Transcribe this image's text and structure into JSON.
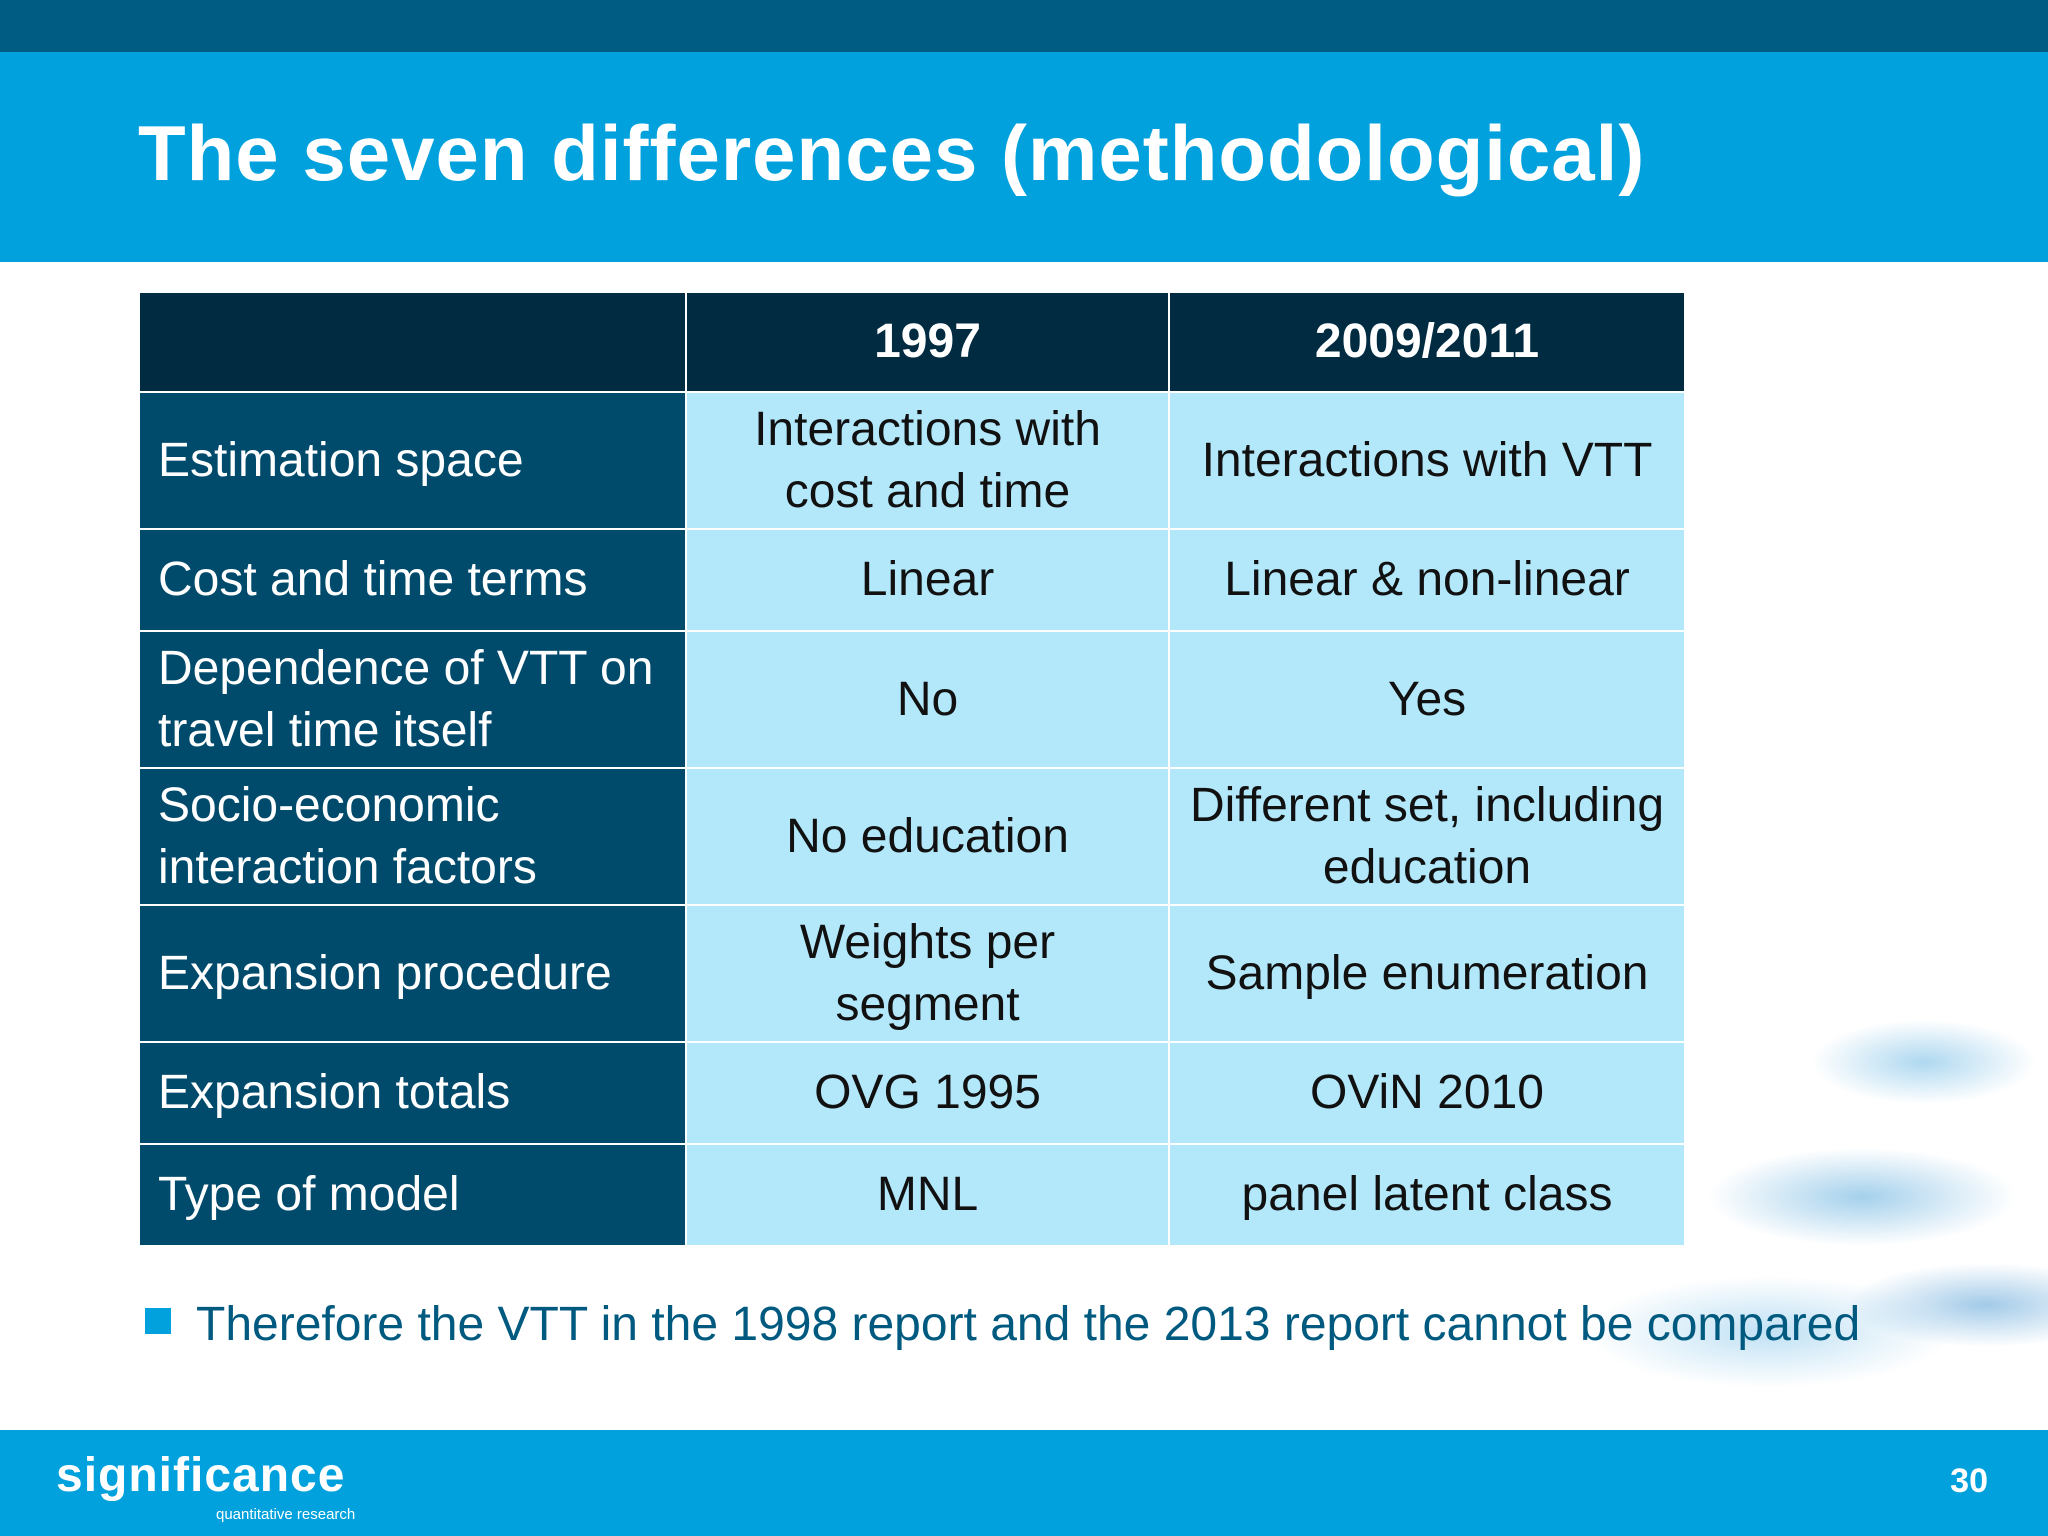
{
  "title": "The seven differences (methodological)",
  "table": {
    "headers": [
      "",
      "1997",
      "2009/2011"
    ],
    "rows": [
      {
        "label": "Estimation space",
        "v1997": "Interactions with cost and time",
        "v2009": "Interactions with VTT"
      },
      {
        "label": "Cost and time terms",
        "v1997": "Linear",
        "v2009": "Linear & non-linear"
      },
      {
        "label": "Dependence of VTT on travel time itself",
        "v1997": "No",
        "v2009": "Yes"
      },
      {
        "label": "Socio-economic interaction factors",
        "v1997": "No education",
        "v2009": "Different set, including education"
      },
      {
        "label": "Expansion procedure",
        "v1997": "Weights per segment",
        "v2009": "Sample enumeration"
      },
      {
        "label": "Expansion totals",
        "v1997": "OVG 1995",
        "v2009": "OViN 2010"
      },
      {
        "label": "Type of model",
        "v1997": "MNL",
        "v2009": "panel latent class"
      }
    ]
  },
  "bullet": "Therefore the VTT in the 1998 report and the 2013 report cannot be compared",
  "footer": {
    "logo": "significance",
    "logo_sub": "quantitative research",
    "page_number": "30"
  },
  "colors": {
    "brand_blue": "#00a1dc",
    "dark_blue": "#005c82",
    "header_navy": "#002b40",
    "label_blue": "#004a6b",
    "cell_light": "#b3e8fb"
  }
}
